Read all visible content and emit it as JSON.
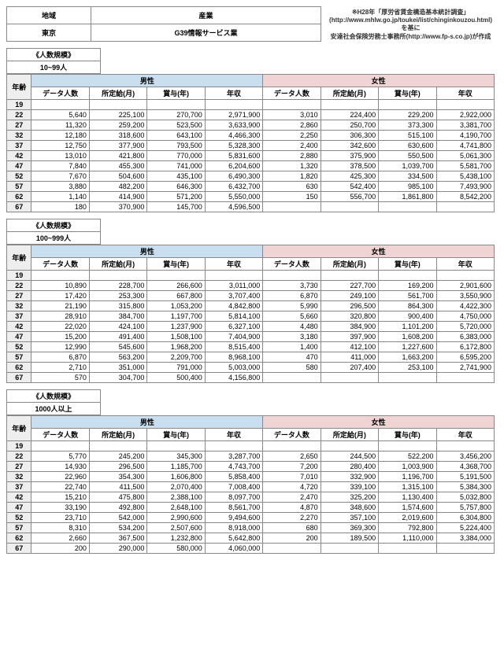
{
  "top": {
    "region_label": "地域",
    "industry_label": "産業",
    "region_value": "東京",
    "industry_value": "G39情報サービス業",
    "note_line1": "※H28年「厚労省賃金構造基本統計調査」(http://www.mhlw.go.jp/toukei/list/chinginkouzou.html)を基に",
    "note_line2": "安達社会保険労務士事務所(http://www.fp-s.co.jp)が作成"
  },
  "common": {
    "size_header": "《人数規模》",
    "age_label": "年齢",
    "male_label": "男性",
    "female_label": "女性",
    "cols": [
      "データ人数",
      "所定給(月)",
      "賞与(年)",
      "年収"
    ],
    "ages": [
      "19",
      "22",
      "27",
      "32",
      "37",
      "42",
      "47",
      "52",
      "57",
      "62",
      "67"
    ]
  },
  "blocks": [
    {
      "size": "10~99人",
      "male": [
        [
          "",
          "",
          "",
          ""
        ],
        [
          "5,640",
          "225,100",
          "270,700",
          "2,971,900"
        ],
        [
          "11,320",
          "259,200",
          "523,500",
          "3,633,900"
        ],
        [
          "12,180",
          "318,600",
          "643,100",
          "4,466,300"
        ],
        [
          "12,750",
          "377,900",
          "793,500",
          "5,328,300"
        ],
        [
          "13,010",
          "421,800",
          "770,000",
          "5,831,600"
        ],
        [
          "7,840",
          "455,300",
          "741,000",
          "6,204,600"
        ],
        [
          "7,670",
          "504,600",
          "435,100",
          "6,490,300"
        ],
        [
          "3,880",
          "482,200",
          "646,300",
          "6,432,700"
        ],
        [
          "1,140",
          "414,900",
          "571,200",
          "5,550,000"
        ],
        [
          "180",
          "370,900",
          "145,700",
          "4,596,500"
        ]
      ],
      "female": [
        [
          "",
          "",
          "",
          ""
        ],
        [
          "3,010",
          "224,400",
          "229,200",
          "2,922,000"
        ],
        [
          "2,860",
          "250,700",
          "373,300",
          "3,381,700"
        ],
        [
          "2,250",
          "306,300",
          "515,100",
          "4,190,700"
        ],
        [
          "2,400",
          "342,600",
          "630,600",
          "4,741,800"
        ],
        [
          "2,880",
          "375,900",
          "550,500",
          "5,061,300"
        ],
        [
          "1,320",
          "378,500",
          "1,039,700",
          "5,581,700"
        ],
        [
          "1,820",
          "425,300",
          "334,500",
          "5,438,100"
        ],
        [
          "630",
          "542,400",
          "985,100",
          "7,493,900"
        ],
        [
          "150",
          "556,700",
          "1,861,800",
          "8,542,200"
        ],
        [
          "",
          "",
          "",
          ""
        ]
      ]
    },
    {
      "size": "100~999人",
      "male": [
        [
          "",
          "",
          "",
          ""
        ],
        [
          "10,890",
          "228,700",
          "266,600",
          "3,011,000"
        ],
        [
          "17,420",
          "253,300",
          "667,800",
          "3,707,400"
        ],
        [
          "21,190",
          "315,800",
          "1,053,200",
          "4,842,800"
        ],
        [
          "28,910",
          "384,700",
          "1,197,700",
          "5,814,100"
        ],
        [
          "22,020",
          "424,100",
          "1,237,900",
          "6,327,100"
        ],
        [
          "15,200",
          "491,400",
          "1,508,100",
          "7,404,900"
        ],
        [
          "12,990",
          "545,600",
          "1,968,200",
          "8,515,400"
        ],
        [
          "6,870",
          "563,200",
          "2,209,700",
          "8,968,100"
        ],
        [
          "2,710",
          "351,000",
          "791,000",
          "5,003,000"
        ],
        [
          "570",
          "304,700",
          "500,400",
          "4,156,800"
        ]
      ],
      "female": [
        [
          "",
          "",
          "",
          ""
        ],
        [
          "3,730",
          "227,700",
          "169,200",
          "2,901,600"
        ],
        [
          "6,870",
          "249,100",
          "561,700",
          "3,550,900"
        ],
        [
          "5,990",
          "296,500",
          "864,300",
          "4,422,300"
        ],
        [
          "5,660",
          "320,800",
          "900,400",
          "4,750,000"
        ],
        [
          "4,480",
          "384,900",
          "1,101,200",
          "5,720,000"
        ],
        [
          "3,180",
          "397,900",
          "1,608,200",
          "6,383,000"
        ],
        [
          "1,400",
          "412,100",
          "1,227,600",
          "6,172,800"
        ],
        [
          "470",
          "411,000",
          "1,663,200",
          "6,595,200"
        ],
        [
          "580",
          "207,400",
          "253,100",
          "2,741,900"
        ],
        [
          "",
          "",
          "",
          ""
        ]
      ]
    },
    {
      "size": "1000人以上",
      "male": [
        [
          "",
          "",
          "",
          ""
        ],
        [
          "5,770",
          "245,200",
          "345,300",
          "3,287,700"
        ],
        [
          "14,930",
          "296,500",
          "1,185,700",
          "4,743,700"
        ],
        [
          "22,960",
          "354,300",
          "1,606,800",
          "5,858,400"
        ],
        [
          "22,740",
          "411,500",
          "2,070,400",
          "7,008,400"
        ],
        [
          "15,210",
          "475,800",
          "2,388,100",
          "8,097,700"
        ],
        [
          "33,190",
          "492,800",
          "2,648,100",
          "8,561,700"
        ],
        [
          "23,710",
          "542,000",
          "2,990,600",
          "9,494,600"
        ],
        [
          "8,310",
          "534,200",
          "2,507,600",
          "8,918,000"
        ],
        [
          "2,660",
          "367,500",
          "1,232,800",
          "5,642,800"
        ],
        [
          "200",
          "290,000",
          "580,000",
          "4,060,000"
        ]
      ],
      "female": [
        [
          "",
          "",
          "",
          ""
        ],
        [
          "2,650",
          "244,500",
          "522,200",
          "3,456,200"
        ],
        [
          "7,200",
          "280,400",
          "1,003,900",
          "4,368,700"
        ],
        [
          "7,010",
          "332,900",
          "1,196,700",
          "5,191,500"
        ],
        [
          "4,720",
          "339,100",
          "1,315,100",
          "5,384,300"
        ],
        [
          "2,470",
          "325,200",
          "1,130,400",
          "5,032,800"
        ],
        [
          "4,870",
          "348,600",
          "1,574,600",
          "5,757,800"
        ],
        [
          "2,270",
          "357,100",
          "2,019,600",
          "6,304,800"
        ],
        [
          "680",
          "369,300",
          "792,800",
          "5,224,400"
        ],
        [
          "200",
          "189,500",
          "1,110,000",
          "3,384,000"
        ],
        [
          "",
          "",
          "",
          ""
        ]
      ]
    }
  ]
}
